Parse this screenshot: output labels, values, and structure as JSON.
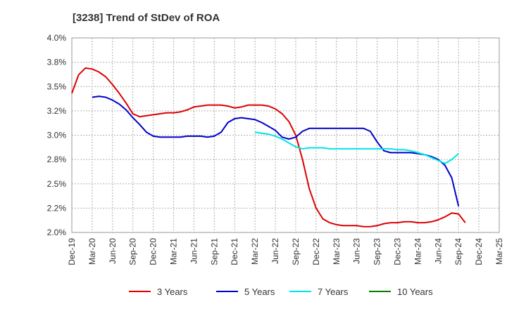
{
  "chart_data": {
    "type": "line",
    "title": "[3238]  Trend of StDev of ROA",
    "xlabel": "",
    "ylabel": "",
    "ylim": [
      2.0,
      4.0
    ],
    "y_ticks": [
      "2.0%",
      "2.2%",
      "2.5%",
      "2.8%",
      "3.0%",
      "3.2%",
      "3.5%",
      "3.8%",
      "4.0%"
    ],
    "x_ticks": [
      "Dec-19",
      "Mar-20",
      "Jun-20",
      "Sep-20",
      "Dec-20",
      "Mar-21",
      "Jun-21",
      "Sep-21",
      "Dec-21",
      "Mar-22",
      "Jun-22",
      "Sep-22",
      "Dec-22",
      "Mar-23",
      "Jun-23",
      "Sep-23",
      "Dec-23",
      "Mar-24",
      "Jun-24",
      "Sep-24",
      "Dec-24",
      "Mar-25"
    ],
    "grid": true,
    "legend_position": "bottom",
    "series": [
      {
        "name": "3 Years",
        "color": "#dd0000",
        "points": [
          [
            0,
            3.43
          ],
          [
            1,
            3.62
          ],
          [
            2,
            3.69
          ],
          [
            3,
            3.68
          ],
          [
            4,
            3.65
          ],
          [
            5,
            3.6
          ],
          [
            6,
            3.52
          ],
          [
            7,
            3.43
          ],
          [
            8,
            3.33
          ],
          [
            9,
            3.22
          ],
          [
            10,
            3.19
          ],
          [
            11,
            3.2
          ],
          [
            12,
            3.21
          ],
          [
            13,
            3.22
          ],
          [
            14,
            3.23
          ],
          [
            15,
            3.23
          ],
          [
            16,
            3.24
          ],
          [
            17,
            3.26
          ],
          [
            18,
            3.29
          ],
          [
            19,
            3.3
          ],
          [
            20,
            3.31
          ],
          [
            21,
            3.31
          ],
          [
            22,
            3.31
          ],
          [
            23,
            3.3
          ],
          [
            24,
            3.28
          ],
          [
            25,
            3.29
          ],
          [
            26,
            3.31
          ],
          [
            27,
            3.31
          ],
          [
            28,
            3.31
          ],
          [
            29,
            3.3
          ],
          [
            30,
            3.27
          ],
          [
            31,
            3.22
          ],
          [
            32,
            3.14
          ],
          [
            33,
            3.0
          ],
          [
            34,
            2.75
          ],
          [
            35,
            2.45
          ],
          [
            36,
            2.25
          ],
          [
            37,
            2.14
          ],
          [
            38,
            2.1
          ],
          [
            39,
            2.08
          ],
          [
            40,
            2.07
          ],
          [
            41,
            2.07
          ],
          [
            42,
            2.07
          ],
          [
            43,
            2.06
          ],
          [
            44,
            2.06
          ],
          [
            45,
            2.07
          ],
          [
            46,
            2.09
          ],
          [
            47,
            2.1
          ],
          [
            48,
            2.1
          ],
          [
            49,
            2.11
          ],
          [
            50,
            2.11
          ],
          [
            51,
            2.1
          ],
          [
            52,
            2.1
          ],
          [
            53,
            2.11
          ],
          [
            54,
            2.13
          ],
          [
            55,
            2.16
          ],
          [
            56,
            2.2
          ],
          [
            57,
            2.19
          ],
          [
            58,
            2.1
          ]
        ]
      },
      {
        "name": "5 Years",
        "color": "#0000cc",
        "points": [
          [
            3,
            3.39
          ],
          [
            4,
            3.4
          ],
          [
            5,
            3.39
          ],
          [
            6,
            3.36
          ],
          [
            7,
            3.32
          ],
          [
            8,
            3.26
          ],
          [
            9,
            3.18
          ],
          [
            10,
            3.11
          ],
          [
            11,
            3.03
          ],
          [
            12,
            2.99
          ],
          [
            13,
            2.98
          ],
          [
            14,
            2.98
          ],
          [
            15,
            2.98
          ],
          [
            16,
            2.98
          ],
          [
            17,
            2.99
          ],
          [
            18,
            2.99
          ],
          [
            19,
            2.99
          ],
          [
            20,
            2.98
          ],
          [
            21,
            2.99
          ],
          [
            22,
            3.03
          ],
          [
            23,
            3.13
          ],
          [
            24,
            3.17
          ],
          [
            25,
            3.18
          ],
          [
            26,
            3.17
          ],
          [
            27,
            3.16
          ],
          [
            28,
            3.13
          ],
          [
            29,
            3.09
          ],
          [
            30,
            3.05
          ],
          [
            31,
            2.98
          ],
          [
            32,
            2.96
          ],
          [
            33,
            2.98
          ],
          [
            34,
            3.04
          ],
          [
            35,
            3.07
          ],
          [
            36,
            3.07
          ],
          [
            37,
            3.07
          ],
          [
            38,
            3.07
          ],
          [
            39,
            3.07
          ],
          [
            40,
            3.07
          ],
          [
            41,
            3.07
          ],
          [
            42,
            3.07
          ],
          [
            43,
            3.07
          ],
          [
            44,
            3.04
          ],
          [
            45,
            2.93
          ],
          [
            46,
            2.84
          ],
          [
            47,
            2.82
          ],
          [
            48,
            2.82
          ],
          [
            49,
            2.82
          ],
          [
            50,
            2.82
          ],
          [
            51,
            2.81
          ],
          [
            52,
            2.8
          ],
          [
            53,
            2.78
          ],
          [
            54,
            2.75
          ],
          [
            55,
            2.69
          ],
          [
            56,
            2.56
          ],
          [
            57,
            2.27
          ]
        ]
      },
      {
        "name": "7 Years",
        "color": "#00e5e5",
        "points": [
          [
            27,
            3.03
          ],
          [
            28,
            3.02
          ],
          [
            29,
            3.01
          ],
          [
            30,
            2.99
          ],
          [
            31,
            2.96
          ],
          [
            32,
            2.92
          ],
          [
            33,
            2.88
          ],
          [
            34,
            2.86
          ],
          [
            35,
            2.87
          ],
          [
            36,
            2.87
          ],
          [
            37,
            2.87
          ],
          [
            38,
            2.86
          ],
          [
            39,
            2.86
          ],
          [
            40,
            2.86
          ],
          [
            41,
            2.86
          ],
          [
            42,
            2.86
          ],
          [
            43,
            2.86
          ],
          [
            44,
            2.86
          ],
          [
            45,
            2.86
          ],
          [
            46,
            2.86
          ],
          [
            47,
            2.86
          ],
          [
            48,
            2.85
          ],
          [
            49,
            2.85
          ],
          [
            50,
            2.84
          ],
          [
            51,
            2.82
          ],
          [
            52,
            2.8
          ],
          [
            53,
            2.77
          ],
          [
            54,
            2.74
          ],
          [
            55,
            2.71
          ],
          [
            56,
            2.75
          ],
          [
            57,
            2.81
          ]
        ]
      },
      {
        "name": "10 Years",
        "color": "#008000",
        "points": []
      }
    ]
  }
}
